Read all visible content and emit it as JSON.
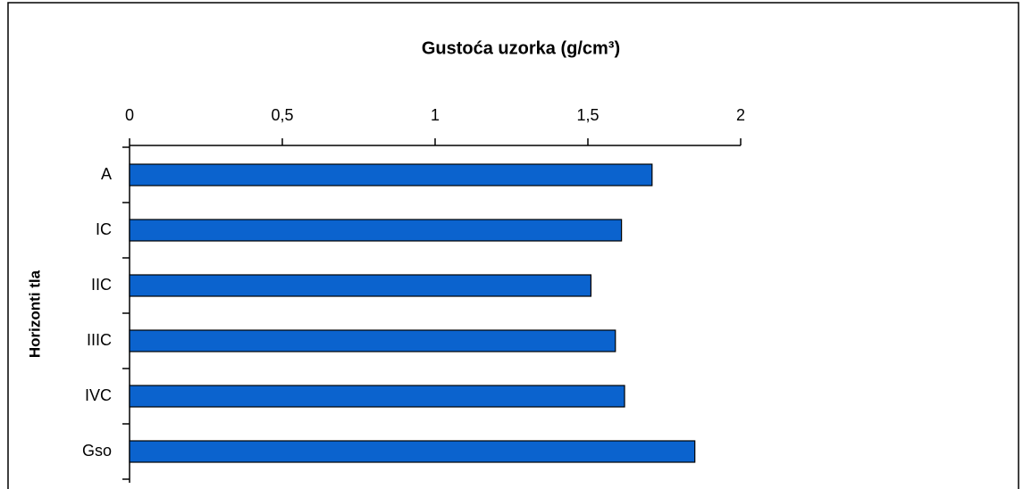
{
  "chart_data": {
    "type": "bar",
    "orientation": "horizontal",
    "title": "Gustoća uzorka (g/cm³)",
    "y_label": "Horizonti tla",
    "categories": [
      "A",
      "IC",
      "IIC",
      "IIIC",
      "IVC",
      "Gso"
    ],
    "values": [
      1.71,
      1.61,
      1.51,
      1.59,
      1.62,
      1.85
    ],
    "color": "#0b63ce",
    "xlim": [
      0,
      2
    ],
    "xticks": [
      0,
      {
        "value": 0.5,
        "label": "0,5"
      },
      1,
      {
        "value": 1.5,
        "label": "1,5"
      },
      2
    ],
    "grid": false
  }
}
